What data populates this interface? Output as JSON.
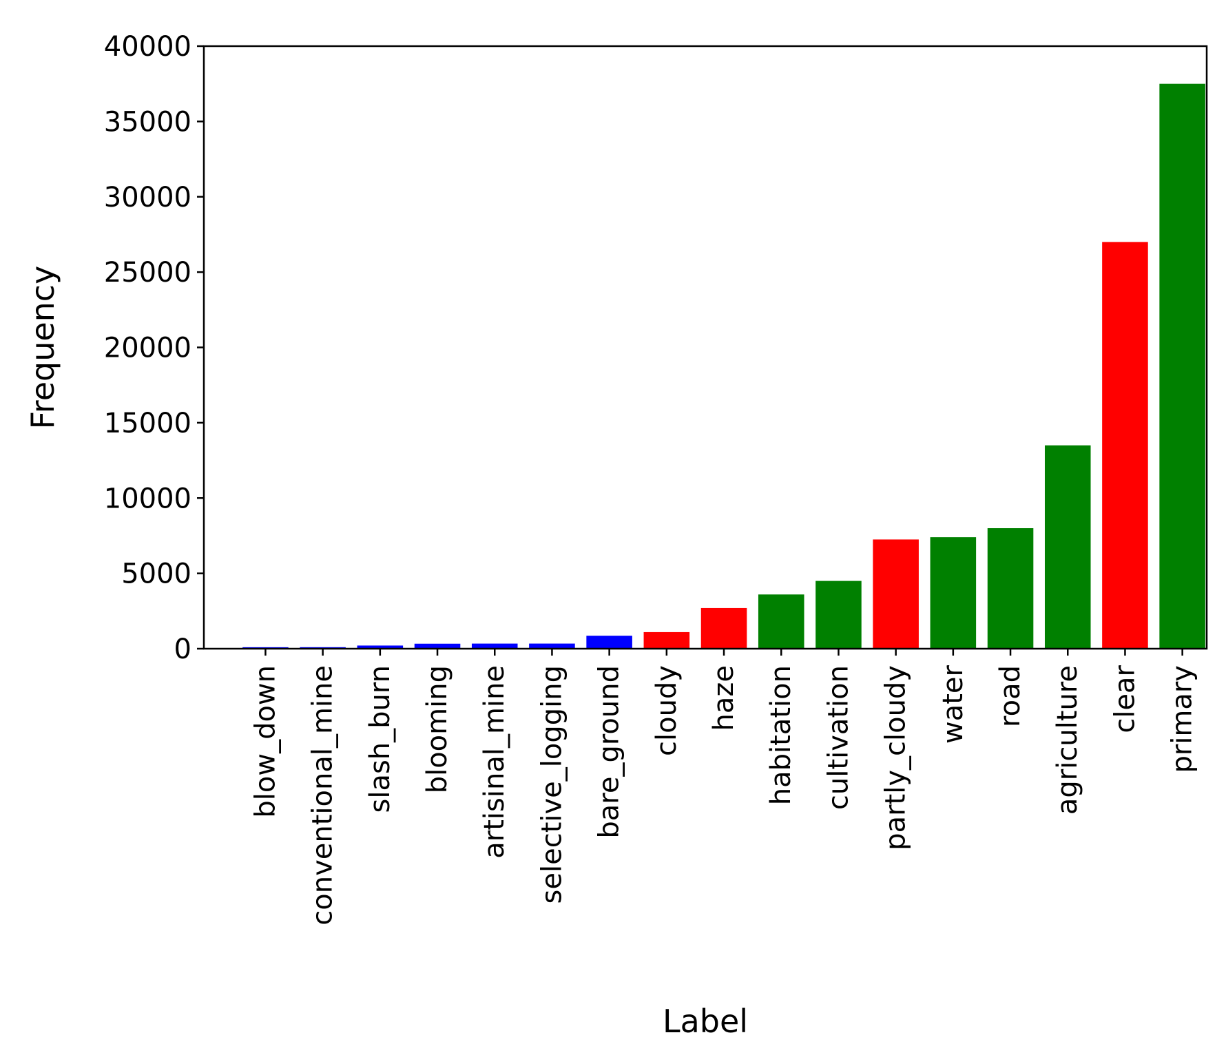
{
  "chart_data": {
    "type": "bar",
    "title": "",
    "xlabel": "Label",
    "ylabel": "Frequency",
    "ylim": [
      0,
      40000
    ],
    "yticks": [
      0,
      5000,
      10000,
      15000,
      20000,
      25000,
      30000,
      35000,
      40000
    ],
    "categories": [
      "blow_down",
      "conventional_mine",
      "slash_burn",
      "blooming",
      "artisinal_mine",
      "selective_logging",
      "bare_ground",
      "cloudy",
      "haze",
      "habitation",
      "cultivation",
      "partly_cloudy",
      "water",
      "road",
      "agriculture",
      "clear",
      "primary"
    ],
    "values": [
      98,
      100,
      209,
      332,
      339,
      340,
      862,
      1100,
      2700,
      3600,
      4500,
      7250,
      7400,
      8000,
      13500,
      27000,
      37500
    ],
    "colors": [
      "#0000ff",
      "#0000ff",
      "#0000ff",
      "#0000ff",
      "#0000ff",
      "#0000ff",
      "#0000ff",
      "#ff0000",
      "#ff0000",
      "#008000",
      "#008000",
      "#ff0000",
      "#008000",
      "#008000",
      "#008000",
      "#ff0000",
      "#008000"
    ],
    "grid": false,
    "legend": "none"
  }
}
